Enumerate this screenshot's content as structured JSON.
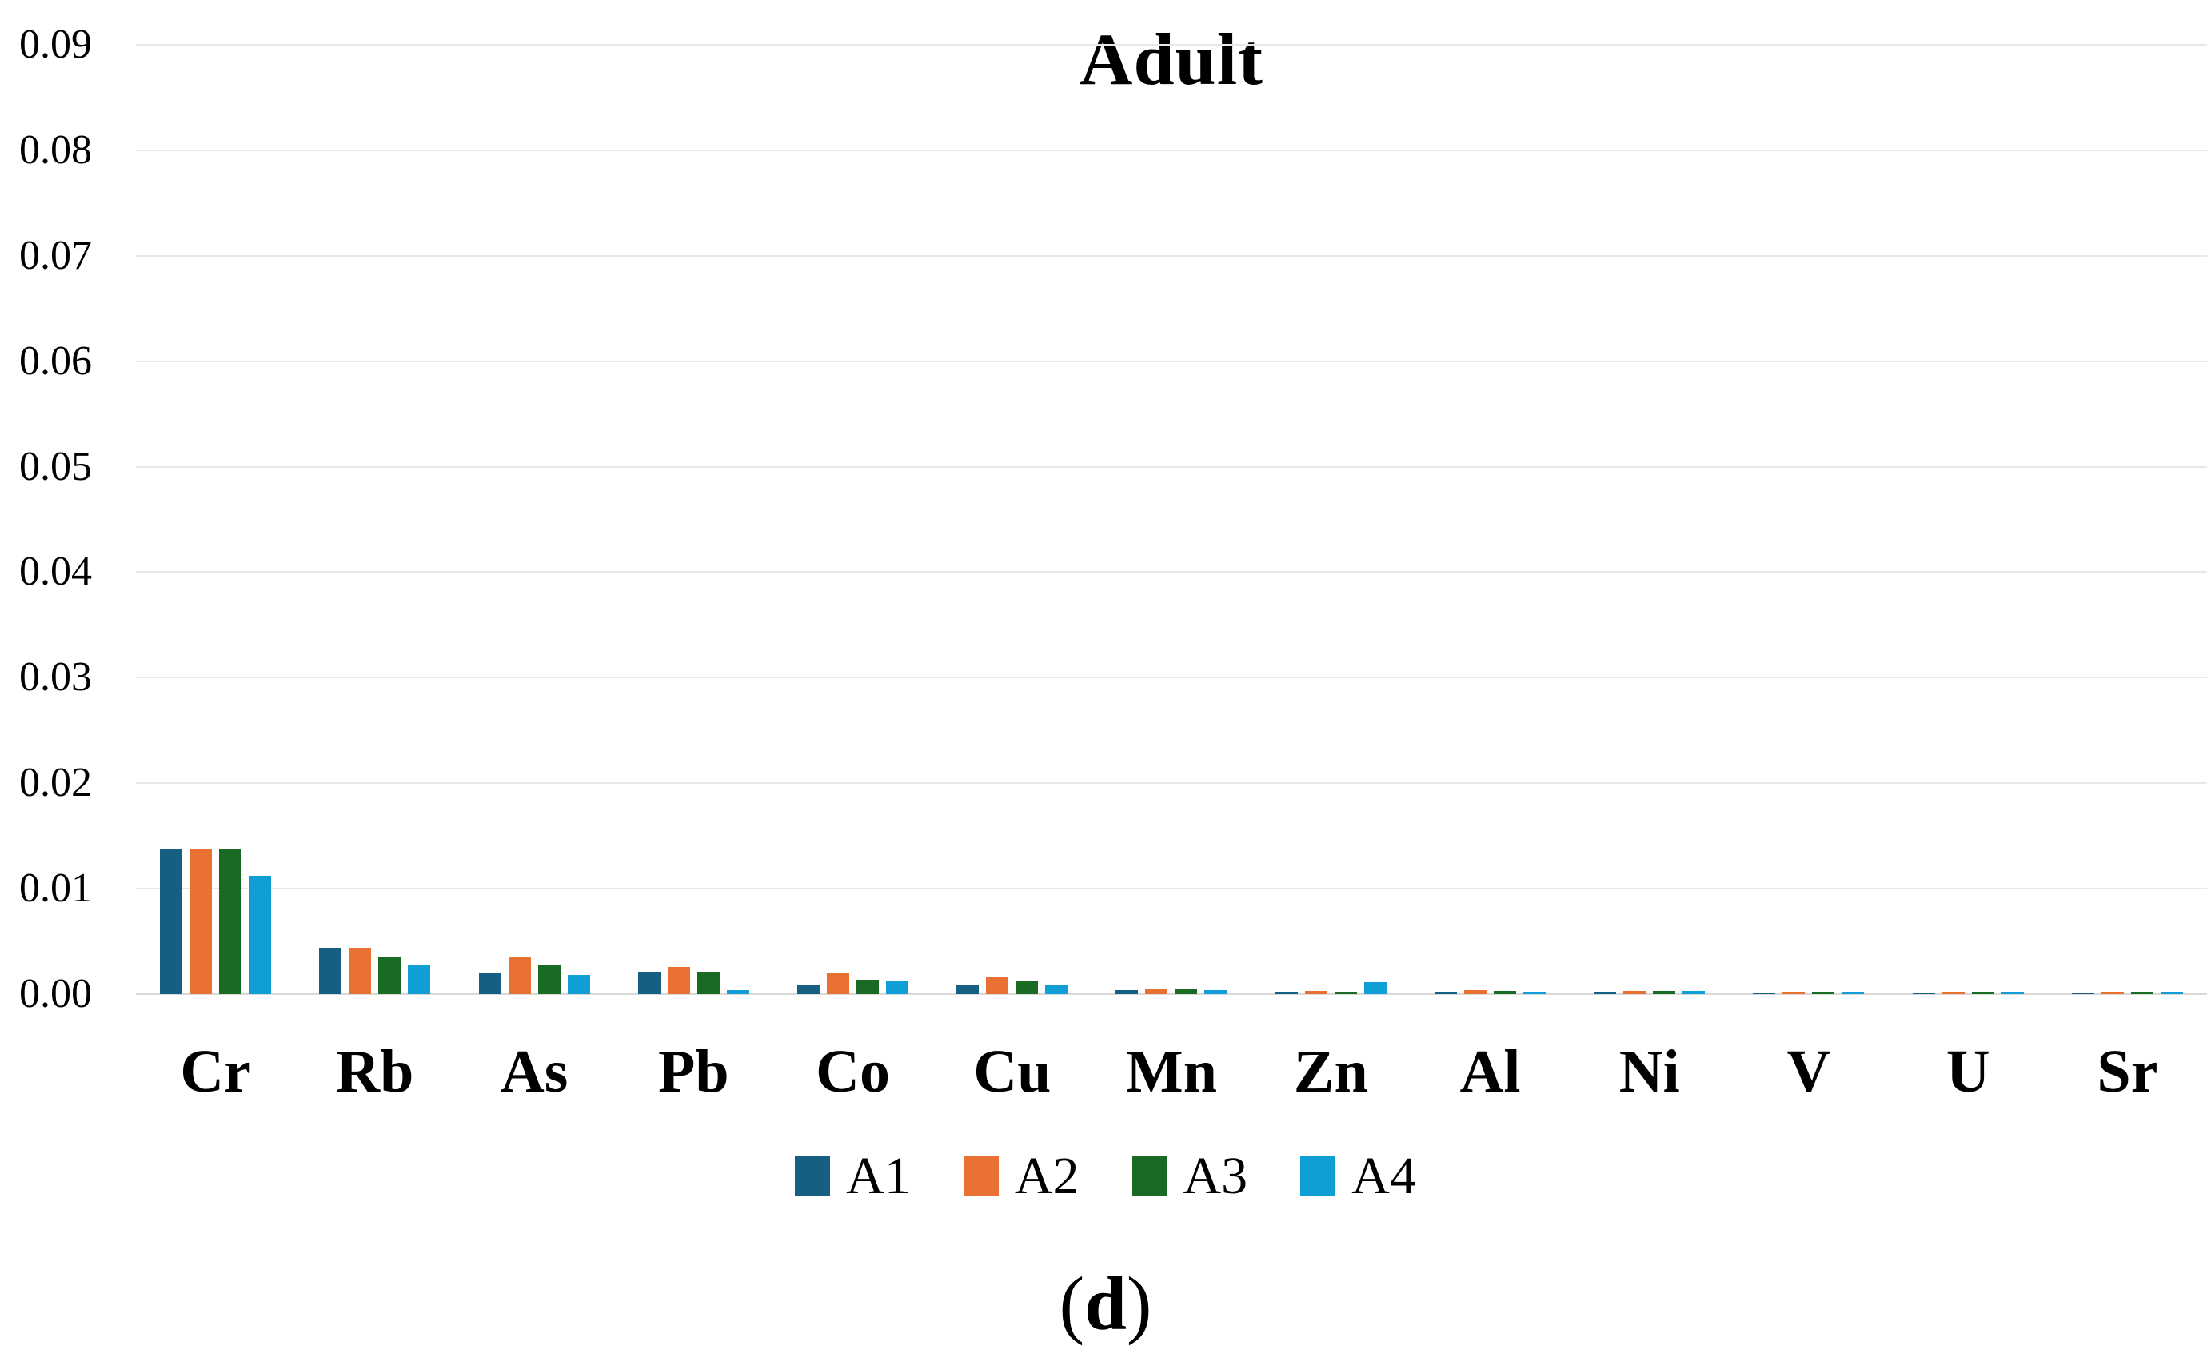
{
  "title": "Adult",
  "caption_open": "(",
  "caption_letter": "d",
  "caption_close": ")",
  "colors": {
    "grid": "#e7e7e7",
    "axis_line": "#d9d9d9",
    "text": "#000000"
  },
  "chart_data": {
    "type": "bar",
    "title": "Adult",
    "xlabel": "",
    "ylabel": "",
    "ylim": [
      0,
      0.09
    ],
    "ytick_step": 0.01,
    "ytick_labels": [
      "0.00",
      "0.01",
      "0.02",
      "0.03",
      "0.04",
      "0.05",
      "0.06",
      "0.07",
      "0.08",
      "0.09"
    ],
    "grid": true,
    "legend_position": "bottom",
    "categories": [
      "Cr",
      "Rb",
      "As",
      "Pb",
      "Co",
      "Cu",
      "Mn",
      "Zn",
      "Al",
      "Ni",
      "V",
      "U",
      "Sr"
    ],
    "series": [
      {
        "name": "A1",
        "color": "#156082",
        "values": [
          0.0138,
          0.0044,
          0.002,
          0.0021,
          0.0009,
          0.0009,
          0.0004,
          0.0002,
          0.0002,
          0.0002,
          0.0001,
          0.0001,
          0.0001
        ]
      },
      {
        "name": "A2",
        "color": "#E97132",
        "values": [
          0.0138,
          0.0044,
          0.0035,
          0.0026,
          0.002,
          0.0016,
          0.0005,
          0.0003,
          0.0004,
          0.0003,
          0.0002,
          0.0002,
          0.0002
        ]
      },
      {
        "name": "A3",
        "color": "#196B24",
        "values": [
          0.0137,
          0.0036,
          0.0027,
          0.0021,
          0.0014,
          0.0012,
          0.0005,
          0.0002,
          0.0003,
          0.0003,
          0.0002,
          0.0002,
          0.0002
        ]
      },
      {
        "name": "A4",
        "color": "#0F9ED5",
        "values": [
          0.0112,
          0.0028,
          0.0018,
          0.0004,
          0.0012,
          0.0008,
          0.0004,
          0.0011,
          0.0002,
          0.0003,
          0.0002,
          0.0002,
          0.0002
        ]
      }
    ]
  }
}
